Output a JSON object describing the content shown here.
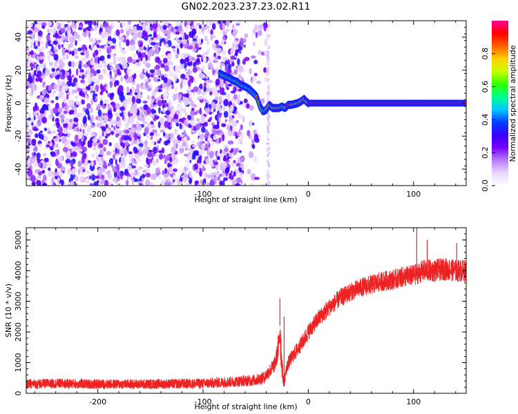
{
  "title": "GN02.2023.237.23.02.R11",
  "chart_data": [
    {
      "type": "heatmap",
      "title": "GN02.2023.237.23.02.R11",
      "xlabel": "Height of straight line (km)",
      "ylabel": "Frequency (Hz)",
      "xlim": [
        -268,
        150
      ],
      "ylim": [
        -50,
        50
      ],
      "xticks": [
        -200,
        -100,
        0,
        100
      ],
      "yticks": [
        -40,
        -20,
        0,
        20,
        40
      ],
      "grid": false,
      "noise_region": {
        "x_start": -268,
        "x_end": -40,
        "frequency_range": [
          -50,
          50
        ],
        "dense_until": -63
      },
      "signal_track": {
        "x": [
          -84,
          -80,
          -76,
          -72,
          -68,
          -64,
          -60,
          -56,
          -52,
          -49,
          -46,
          -43,
          -40,
          -37,
          -34,
          -31,
          -28,
          -25,
          -22,
          -19,
          -16,
          -13,
          -10,
          -7,
          -4,
          -2,
          0,
          20,
          50,
          100,
          150
        ],
        "frequency": [
          18,
          16.5,
          15.5,
          14,
          13,
          11,
          10,
          8.5,
          6,
          4,
          -2,
          -5,
          -4,
          -1,
          -3,
          -3,
          -3,
          -2,
          -3,
          -1,
          -1,
          -0.5,
          0,
          1,
          2.5,
          1,
          0,
          0,
          0,
          0,
          0
        ]
      },
      "colorbar": {
        "label": "Normalized spectral amplitude",
        "ticks": [
          0.0,
          0.2,
          0.4,
          0.6,
          0.8
        ],
        "range": [
          0,
          1
        ],
        "colormap": [
          "#ffffff",
          "#e9d6ff",
          "#b87cff",
          "#7a00ff",
          "#3a00ff",
          "#0040ff",
          "#00c8ff",
          "#00ff90",
          "#30ff00",
          "#c8ff00",
          "#ffd000",
          "#ff6000",
          "#ff0000",
          "#ff0090"
        ]
      }
    },
    {
      "type": "line",
      "xlabel": "Height of straight line (km)",
      "ylabel": "SNR (10 * v/v)",
      "xlim": [
        -268,
        150
      ],
      "ylim": [
        0,
        5400
      ],
      "xticks": [
        -200,
        -100,
        0,
        100
      ],
      "yticks": [
        0,
        1000,
        2000,
        3000,
        4000,
        5000
      ],
      "grid": false,
      "series": [
        {
          "color": "#ee2222",
          "x": [
            -268,
            -240,
            -200,
            -150,
            -100,
            -70,
            -50,
            -42,
            -38,
            -35,
            -32,
            -30,
            -28,
            -27,
            -26,
            -25,
            -24,
            -23,
            -22,
            -20,
            -18,
            -15,
            -10,
            -5,
            0,
            10,
            20,
            30,
            40,
            50,
            60,
            70,
            80,
            90,
            100,
            110,
            120,
            130,
            140,
            150
          ],
          "y": [
            300,
            320,
            300,
            300,
            320,
            380,
            430,
            520,
            680,
            800,
            950,
            1200,
            1600,
            2200,
            1500,
            900,
            500,
            300,
            600,
            900,
            1050,
            1200,
            1450,
            1700,
            2000,
            2450,
            2800,
            3100,
            3300,
            3450,
            3550,
            3650,
            3700,
            3800,
            3850,
            4000,
            4000,
            4050,
            4000,
            4000
          ],
          "noise_amplitude": [
            160,
            160,
            160,
            160,
            170,
            180,
            190,
            200,
            220,
            240,
            260,
            300,
            500,
            900,
            700,
            400,
            200,
            160,
            200,
            220,
            230,
            240,
            250,
            260,
            270,
            280,
            290,
            300,
            300,
            310,
            320,
            330,
            330,
            340,
            350,
            360,
            370,
            370,
            370,
            370
          ],
          "spikes": [
            {
              "x": -27,
              "y": 3100
            },
            {
              "x": -23,
              "y": 2500
            },
            {
              "x": 103,
              "y": 5400
            },
            {
              "x": 113,
              "y": 5000
            },
            {
              "x": 141,
              "y": 4900
            }
          ]
        }
      ]
    }
  ]
}
